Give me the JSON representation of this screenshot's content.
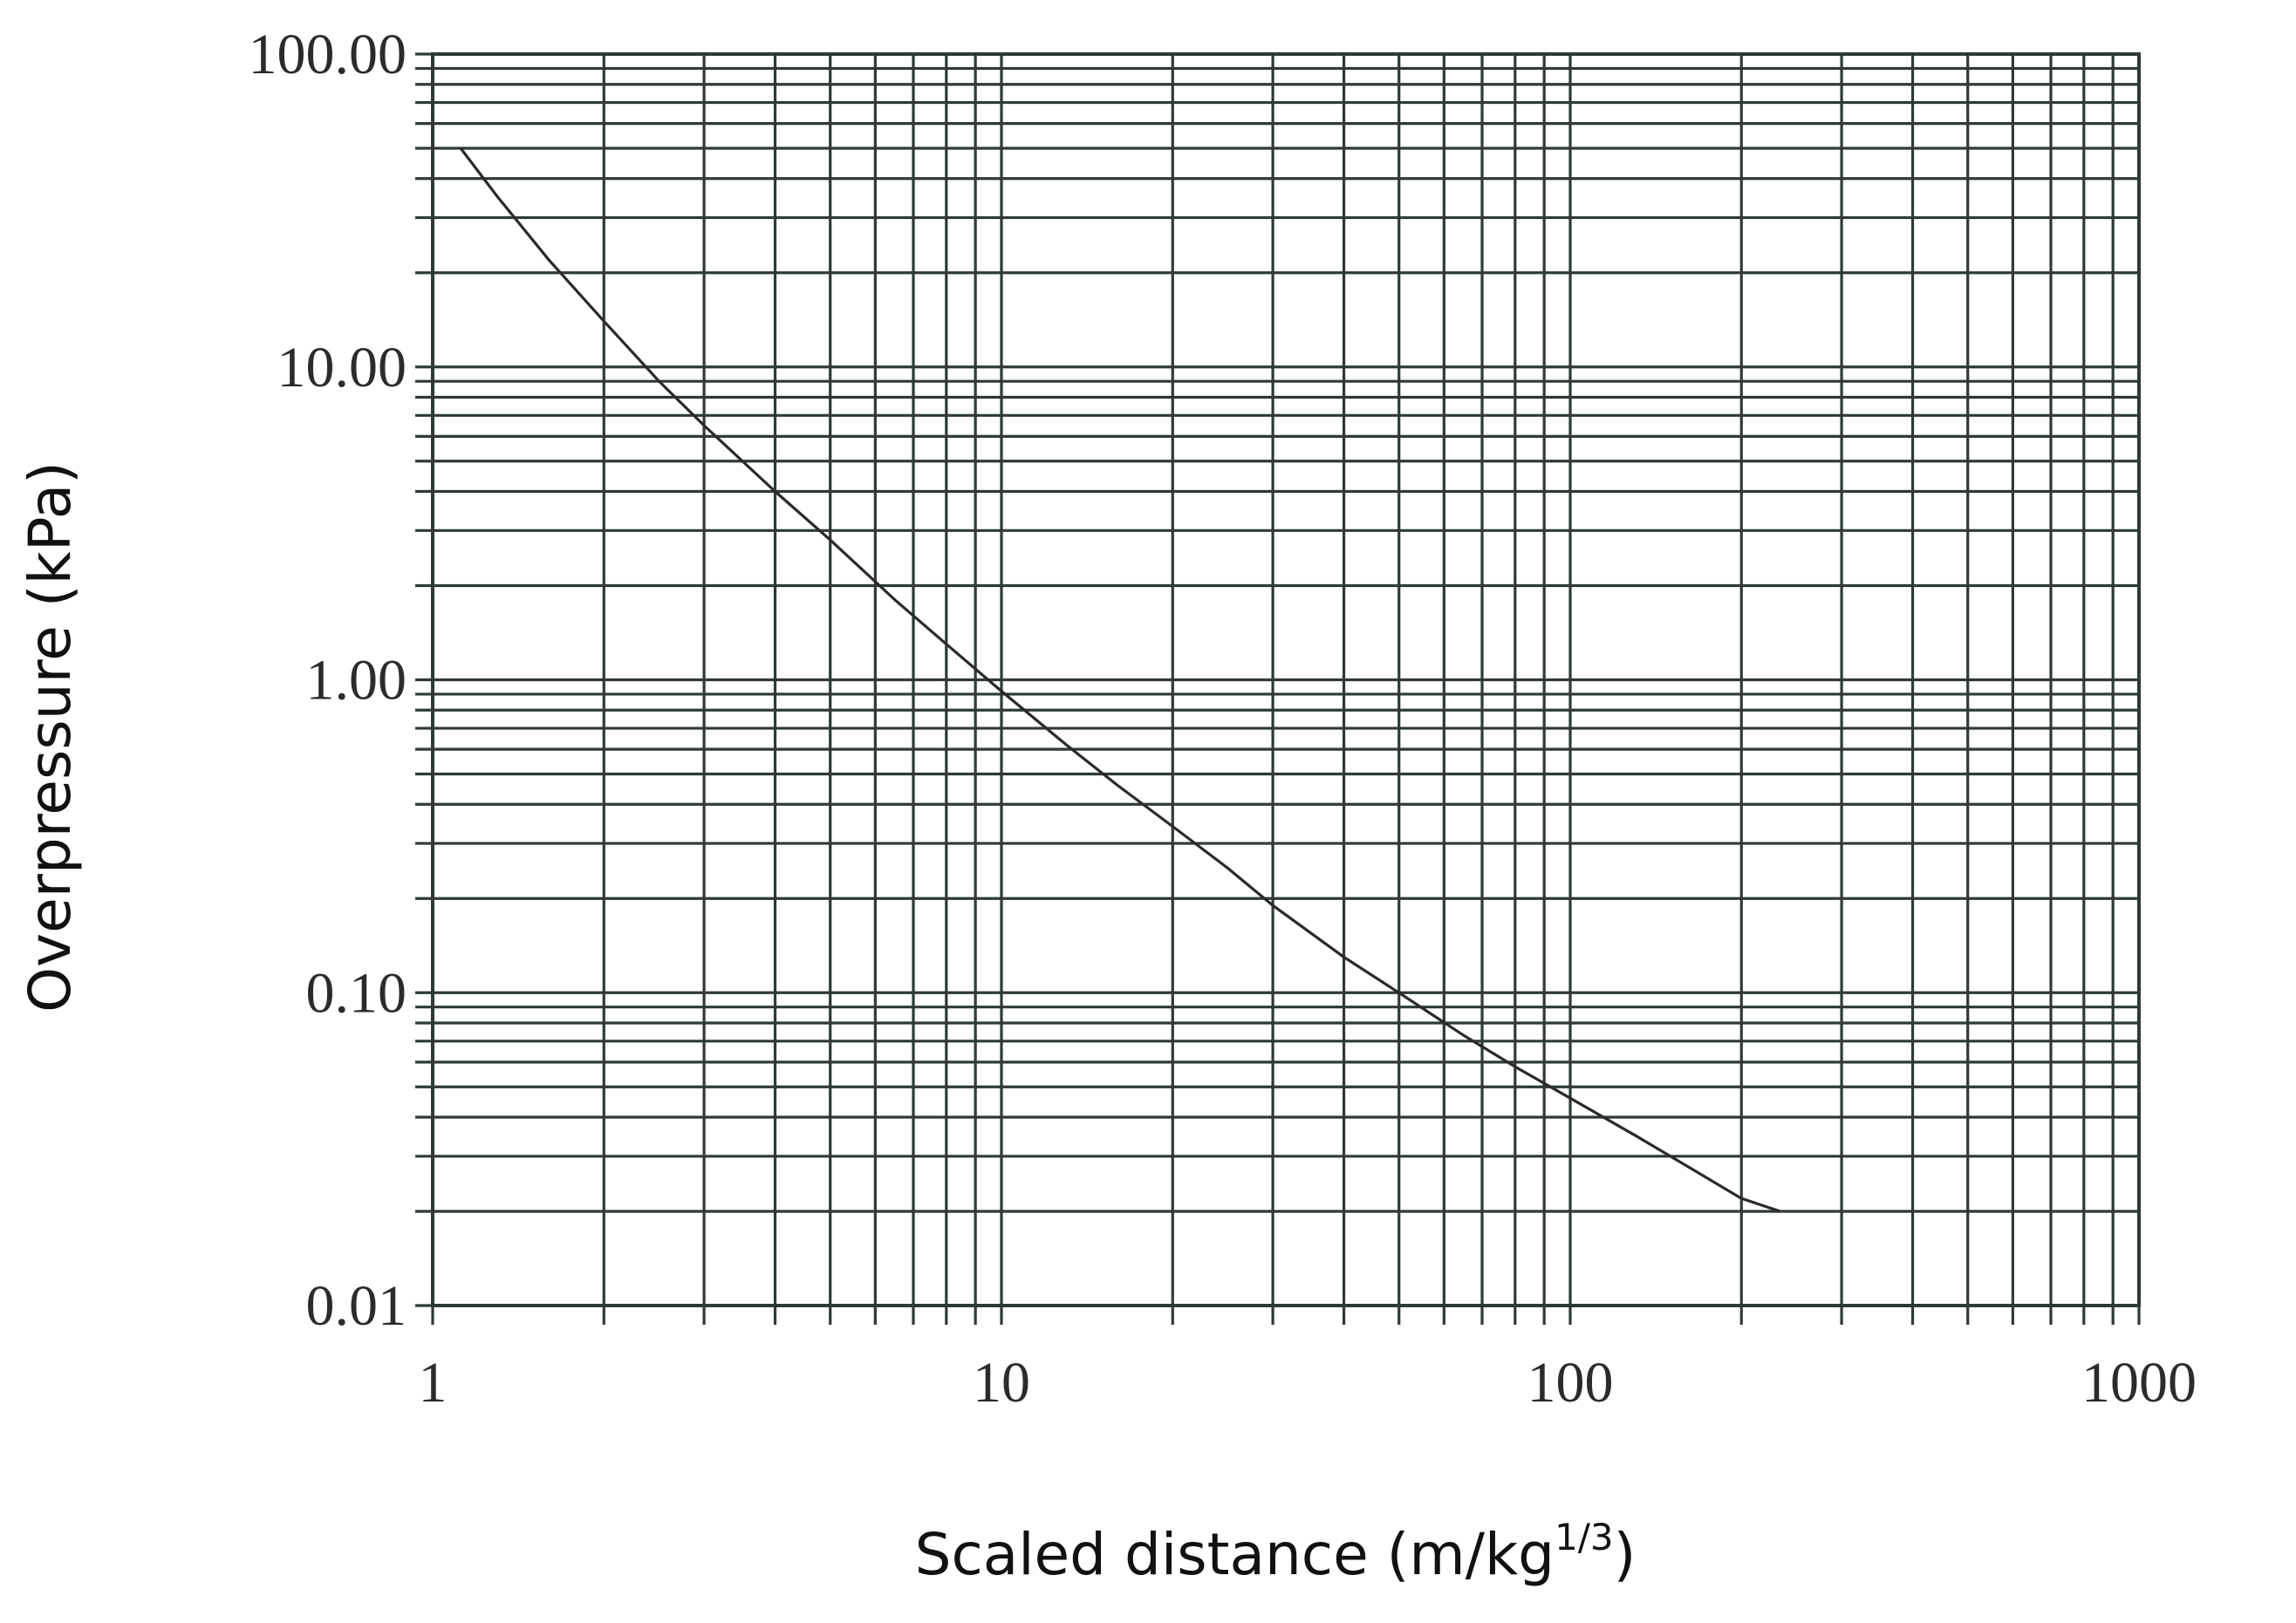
{
  "chart_data": {
    "type": "line",
    "title": "",
    "xlabel": "Scaled distance (m/kg",
    "xlabel_sup": "1/3",
    "xlabel_close": ")",
    "ylabel": "Overpressure (kPa)",
    "xscale": "log",
    "yscale": "log",
    "xlim": [
      1,
      1000
    ],
    "ylim": [
      0.01,
      100
    ],
    "xticks": [
      1,
      10,
      100,
      1000
    ],
    "xtick_labels": [
      "1",
      "10",
      "100",
      "1000"
    ],
    "yticks": [
      100,
      10,
      1,
      0.1,
      0.01
    ],
    "ytick_labels": [
      "100.00",
      "10.00",
      "1.00",
      "0.10",
      "0.01"
    ],
    "grid": true,
    "colors": {
      "grid": "#2f3a33",
      "line": "#2a2a2a",
      "text": "#2b2b2b"
    },
    "series": [
      {
        "x": [
          1.12,
          1.3,
          1.6,
          2.0,
          2.5,
          3.0,
          4.0,
          5.0,
          6.5,
          8.0,
          10,
          13,
          16,
          20,
          25,
          30,
          40,
          50,
          65,
          80,
          100,
          130,
          160,
          200,
          234
        ],
        "y": [
          50,
          35,
          22,
          14,
          9.0,
          6.5,
          4.0,
          2.8,
          1.8,
          1.3,
          0.92,
          0.62,
          0.46,
          0.34,
          0.25,
          0.19,
          0.13,
          0.1,
          0.073,
          0.058,
          0.046,
          0.035,
          0.028,
          0.022,
          0.02
        ]
      }
    ]
  }
}
